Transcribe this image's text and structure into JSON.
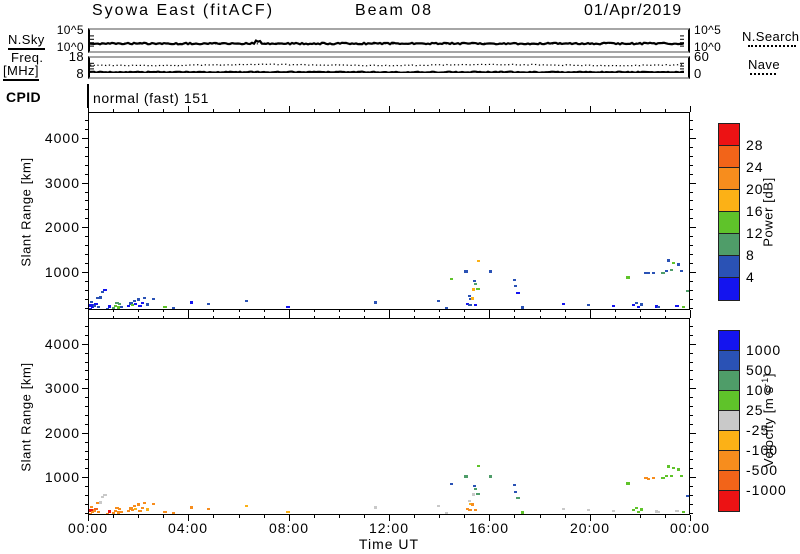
{
  "header": {
    "title": "Syowa East (fitACF)",
    "beam": "Beam 08",
    "date": "01/Apr/2019"
  },
  "strips": {
    "nsky_label": "N.Sky",
    "nsearch_label": "N.Search",
    "freq_label_line1": "Freq.",
    "freq_label_line2": "[MHz]",
    "nave_label": "Nave",
    "noise_tick_top": "10^5",
    "noise_tick_bottom": "10^0",
    "freq_tick_top": "18",
    "freq_tick_bottom": "8",
    "nave_tick_top": "60",
    "nave_tick_bottom": "0"
  },
  "cpid": {
    "label": "CPID",
    "value": "normal (fast) 151"
  },
  "axes": {
    "time_label": "Time UT",
    "time_ticks": [
      {
        "hour": 0,
        "label": "00:00"
      },
      {
        "hour": 4,
        "label": "04:00"
      },
      {
        "hour": 8,
        "label": "08:00"
      },
      {
        "hour": 12,
        "label": "12:00"
      },
      {
        "hour": 16,
        "label": "16:00"
      },
      {
        "hour": 20,
        "label": "20:00"
      },
      {
        "hour": 24,
        "label": "00:00"
      }
    ],
    "range_label": "Slant Range [km]",
    "range_ticks": [
      1000,
      2000,
      3000,
      4000
    ],
    "range_min": 150,
    "range_max": 4580
  },
  "scales": {
    "power": {
      "label": "Power [dB]",
      "thresholds": [
        4,
        8,
        12,
        16,
        20,
        24,
        28
      ],
      "colors": [
        "#1414ef",
        "#2a52b5",
        "#4f9d69",
        "#5fc32a",
        "#fcb116",
        "#f78d1d",
        "#f26419",
        "#ec1214"
      ]
    },
    "velocity": {
      "label_prefix": "Velocity [m s",
      "label_sup": "-1",
      "label_suffix": "]",
      "thresholds": [
        -1000,
        -500,
        -100,
        -25,
        25,
        100,
        500,
        1000
      ],
      "colors": [
        "#ec1214",
        "#f26419",
        "#f78d1d",
        "#fcb116",
        "#c9c9c9",
        "#5fc32a",
        "#4f9d69",
        "#2a52b5",
        "#1414ef"
      ]
    }
  },
  "chart_data": {
    "type": "scatter",
    "title": "Syowa East (fitACF)  Beam 08  01/Apr/2019",
    "panels": [
      {
        "name": "power",
        "ylabel": "Slant Range [km]",
        "units": "dB",
        "ylim": [
          150,
          4580
        ]
      },
      {
        "name": "velocity",
        "ylabel": "Slant Range [km]",
        "units": "m s-1",
        "ylim": [
          150,
          4580
        ]
      }
    ],
    "x": {
      "label": "Time UT",
      "range_hours": [
        0,
        24
      ],
      "tick_labels": [
        "00:00",
        "04:00",
        "08:00",
        "12:00",
        "16:00",
        "20:00",
        "00:00"
      ]
    },
    "strip_series": {
      "nsky_log10": 1.6,
      "nsearch_log10": 1.6,
      "freq_mhz": 9.3,
      "nave": 40,
      "noise_axis_log10": [
        0,
        5
      ],
      "freq_axis_mhz": [
        8,
        18
      ],
      "nave_axis": [
        0,
        60
      ]
    },
    "cpid": "normal (fast) 151",
    "point_format": [
      "time_hours",
      "slant_range_km",
      "power_dB",
      "velocity_ms"
    ],
    "points": [
      [
        0.03,
        290,
        3,
        -1100
      ],
      [
        0.05,
        200,
        3,
        -350
      ],
      [
        0.07,
        350,
        4,
        -300
      ],
      [
        0.1,
        240,
        3,
        -400
      ],
      [
        0.18,
        280,
        6,
        -300
      ],
      [
        0.25,
        310,
        3,
        -600
      ],
      [
        0.3,
        450,
        6,
        -250
      ],
      [
        0.35,
        240,
        5,
        -350
      ],
      [
        0.45,
        470,
        4,
        0
      ],
      [
        0.52,
        580,
        4,
        20
      ],
      [
        0.58,
        630,
        3,
        0
      ],
      [
        0.7,
        200,
        6,
        -300
      ],
      [
        0.78,
        260,
        3,
        -1100
      ],
      [
        0.95,
        220,
        10,
        -280
      ],
      [
        1.02,
        270,
        12,
        -300
      ],
      [
        1.08,
        320,
        10,
        -250
      ],
      [
        1.15,
        250,
        14,
        -320
      ],
      [
        1.2,
        300,
        10,
        -280
      ],
      [
        1.28,
        230,
        6,
        -260
      ],
      [
        1.55,
        270,
        3,
        -240
      ],
      [
        1.62,
        330,
        6,
        -150
      ],
      [
        1.7,
        280,
        14,
        -200
      ],
      [
        1.78,
        380,
        6,
        -250
      ],
      [
        1.85,
        300,
        3,
        -60
      ],
      [
        1.95,
        420,
        6,
        -210
      ],
      [
        2.0,
        260,
        3,
        -240
      ],
      [
        2.1,
        340,
        3,
        -150
      ],
      [
        2.18,
        440,
        6,
        -260
      ],
      [
        2.3,
        300,
        6,
        -80
      ],
      [
        2.55,
        420,
        6,
        -180
      ],
      [
        3.0,
        250,
        14,
        -140
      ],
      [
        3.35,
        220,
        6,
        -120
      ],
      [
        4.05,
        350,
        3,
        -150
      ],
      [
        4.75,
        300,
        6,
        -180
      ],
      [
        6.25,
        370,
        6,
        -80
      ],
      [
        7.9,
        250,
        3,
        -40
      ],
      [
        11.4,
        350,
        5,
        -20
      ],
      [
        13.9,
        370,
        4,
        0
      ],
      [
        14.25,
        210,
        4,
        -10
      ],
      [
        14.45,
        870,
        14,
        600
      ],
      [
        15.0,
        1050,
        6,
        300
      ],
      [
        15.5,
        1270,
        16,
        90
      ],
      [
        15.35,
        820,
        6,
        700
      ],
      [
        15.4,
        750,
        10,
        300
      ],
      [
        15.3,
        650,
        18,
        -10
      ],
      [
        15.45,
        640,
        12,
        100
      ],
      [
        15.15,
        480,
        6,
        0
      ],
      [
        15.2,
        420,
        6,
        -30
      ],
      [
        15.25,
        430,
        18,
        -150
      ],
      [
        15.05,
        300,
        3,
        -150
      ],
      [
        15.15,
        280,
        6,
        -200
      ],
      [
        15.4,
        290,
        3,
        -150
      ],
      [
        16.0,
        1040,
        5,
        200
      ],
      [
        16.95,
        850,
        6,
        500
      ],
      [
        17.0,
        700,
        6,
        600
      ],
      [
        17.05,
        560,
        3,
        400
      ],
      [
        17.25,
        250,
        4,
        25
      ],
      [
        18.9,
        300,
        3,
        0
      ],
      [
        19.9,
        280,
        4,
        -10
      ],
      [
        20.9,
        260,
        3,
        10
      ],
      [
        21.45,
        900,
        14,
        60
      ],
      [
        21.7,
        280,
        3,
        50
      ],
      [
        21.8,
        330,
        5,
        60
      ],
      [
        21.9,
        250,
        3,
        40
      ],
      [
        22.0,
        300,
        6,
        50
      ],
      [
        22.15,
        1000,
        6,
        -300
      ],
      [
        22.3,
        990,
        6,
        -280
      ],
      [
        22.5,
        1010,
        6,
        -250
      ],
      [
        22.6,
        270,
        3,
        0
      ],
      [
        22.7,
        250,
        6,
        10
      ],
      [
        22.85,
        1000,
        10,
        80
      ],
      [
        23.0,
        1040,
        6,
        60
      ],
      [
        23.1,
        1280,
        6,
        30
      ],
      [
        23.2,
        1060,
        10,
        90
      ],
      [
        23.3,
        1220,
        14,
        70
      ],
      [
        23.4,
        260,
        3,
        0
      ],
      [
        23.5,
        1200,
        6,
        50
      ],
      [
        23.6,
        1050,
        6,
        40
      ],
      [
        23.7,
        250,
        12,
        60
      ],
      [
        23.85,
        590,
        10,
        600
      ],
      [
        23.95,
        480,
        6,
        450
      ]
    ]
  }
}
